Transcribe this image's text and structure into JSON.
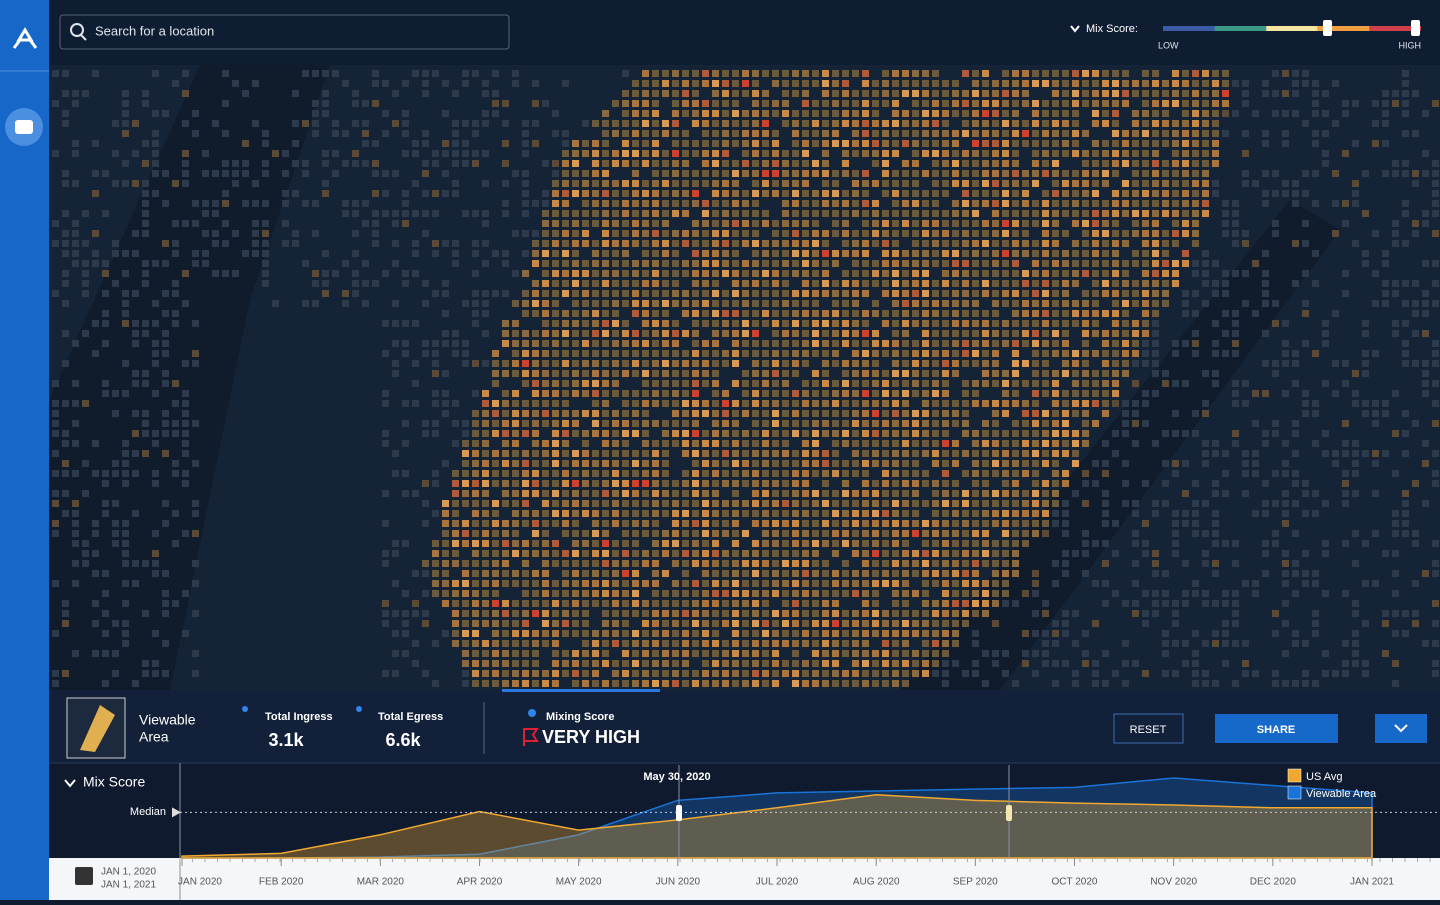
{
  "search": {
    "placeholder": "Search for a location"
  },
  "mix_score_legend": {
    "label": "Mix Score:",
    "low": "LOW",
    "high": "HIGH",
    "colors": [
      "#3b5ba5",
      "#3a9a85",
      "#f4e6a0",
      "#f0a040",
      "#d0404a"
    ]
  },
  "stats": {
    "area_title": "Viewable Area",
    "ingress_label": "Total Ingress",
    "ingress_value": "3.1k",
    "egress_label": "Total Egress",
    "egress_value": "6.6k",
    "mixing_label": "Mixing Score",
    "mixing_value": "VERY HIGH"
  },
  "buttons": {
    "reset": "RESET",
    "share": "SHARE"
  },
  "date_range": {
    "start": "JAN 1, 2020",
    "end": "JAN 1, 2021"
  },
  "chart_data": {
    "type": "area",
    "title": "Mix Score",
    "median_label": "Median",
    "median": 49,
    "selected_date": "May 30, 2020",
    "categories": [
      "JAN 2020",
      "FEB 2020",
      "MAR 2020",
      "APR 2020",
      "MAY 2020",
      "JUN 2020",
      "JUL 2020",
      "AUG 2020",
      "SEP 2020",
      "OCT 2020",
      "NOV 2020",
      "DEC 2020",
      "JAN 2021"
    ],
    "ylim": [
      0,
      100
    ],
    "series": [
      {
        "name": "US Avg",
        "color": "#f0a830",
        "values": [
          2,
          5,
          25,
          50,
          30,
          41,
          54,
          68,
          62,
          59,
          57,
          54,
          54
        ]
      },
      {
        "name": "Viewable Area",
        "color": "#1a73d8",
        "values": [
          0,
          0,
          1,
          4,
          25,
          62,
          70,
          72,
          74,
          76,
          86,
          78,
          70
        ]
      }
    ]
  }
}
